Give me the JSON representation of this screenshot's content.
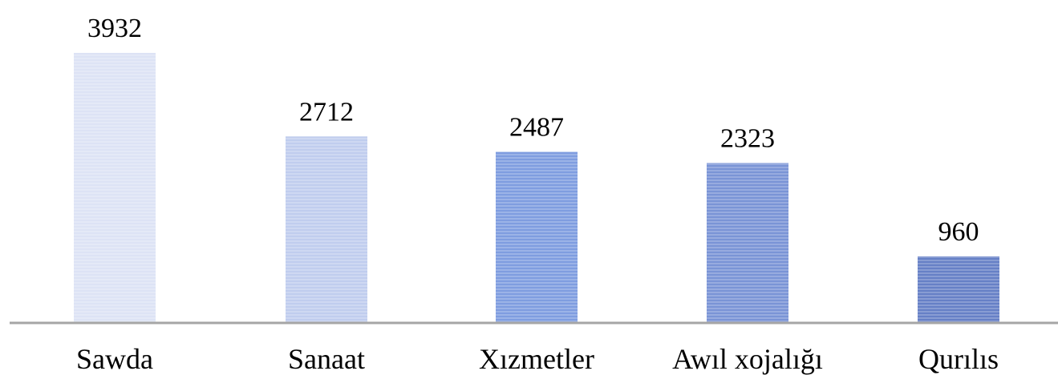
{
  "chart_data": {
    "type": "bar",
    "categories": [
      "Sawda",
      "Sanaat",
      "Xızmetler",
      "Awıl xojalığı",
      "Qurılıs"
    ],
    "values": [
      3932,
      2712,
      2487,
      2323,
      960
    ],
    "data_labels": [
      "3932",
      "2712",
      "2487",
      "2323",
      "960"
    ],
    "title": "",
    "xlabel": "",
    "ylabel": "",
    "ylim": [
      0,
      3932
    ],
    "grid": false,
    "legend": "none",
    "bar_colors": [
      "#dde3f5",
      "#c0cdee",
      "#7f9de0",
      "#7a94d6",
      "#6680c6"
    ],
    "axis_color": "#a6a6a6"
  }
}
